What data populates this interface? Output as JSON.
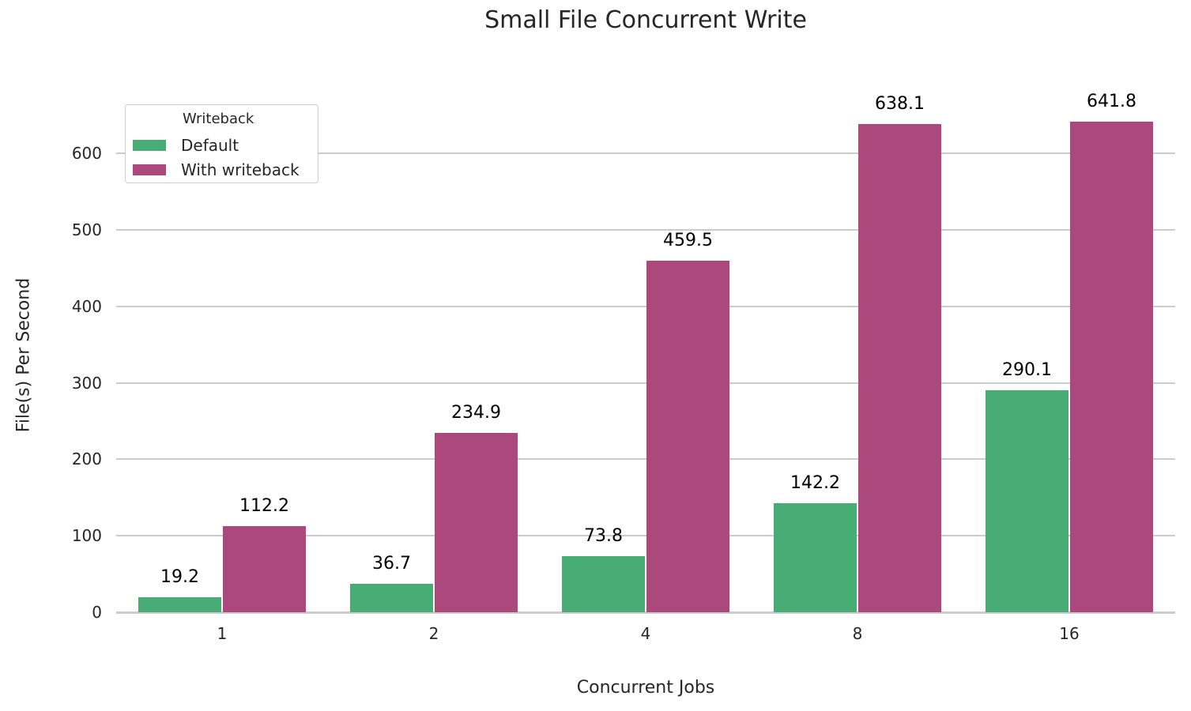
{
  "chart_data": {
    "type": "bar",
    "title": "Small File Concurrent Write",
    "xlabel": "Concurrent Jobs",
    "ylabel": "File(s) Per Second",
    "categories": [
      "1",
      "2",
      "4",
      "8",
      "16"
    ],
    "series": [
      {
        "name": "Default",
        "color": "#48ad75",
        "values": [
          19.2,
          36.7,
          73.8,
          142.2,
          290.1
        ]
      },
      {
        "name": "With writeback",
        "color": "#ab487c",
        "values": [
          112.2,
          234.9,
          459.5,
          638.1,
          641.8
        ]
      }
    ],
    "yticks": [
      0,
      100,
      200,
      300,
      400,
      500,
      600
    ],
    "ylim": [
      0,
      660
    ],
    "grid": true,
    "legend": {
      "title": "Writeback",
      "position": "upper left"
    },
    "data_labels": true
  },
  "labels": {
    "title": "Small File Concurrent Write",
    "xlabel": "Concurrent Jobs",
    "ylabel": "File(s) Per Second",
    "legend_title": "Writeback",
    "legend_default": "Default",
    "legend_writeback": "With writeback"
  }
}
